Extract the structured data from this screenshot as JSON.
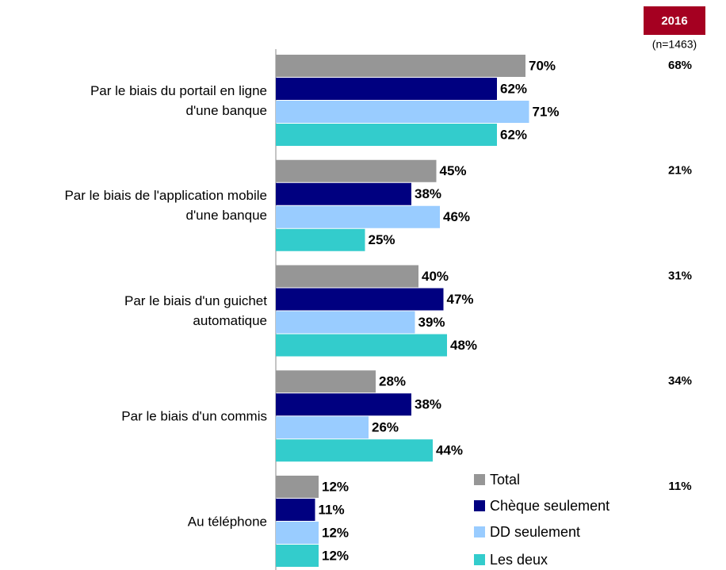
{
  "chart_data": {
    "type": "bar",
    "orientation": "horizontal",
    "categories": [
      "Par le biais du portail en ligne\nd'une banque",
      "Par le biais de l'application mobile\nd'une banque",
      "Par le biais d'un guichet\nautomatique",
      "Par le biais d'un commis",
      "Au téléphone"
    ],
    "series": [
      {
        "name": "Total",
        "color": "#969696",
        "values": [
          70,
          45,
          40,
          28,
          12
        ],
        "value_labels": [
          "70%",
          "45%",
          "40%",
          "28%",
          "12%"
        ]
      },
      {
        "name": "Chèque seulement",
        "color": "#000080",
        "values": [
          62,
          38,
          47,
          38,
          11
        ],
        "value_labels": [
          "62%",
          "38%",
          "47%",
          "38%",
          "11%"
        ]
      },
      {
        "name": "DD seulement",
        "color": "#99ccff",
        "values": [
          71,
          46,
          39,
          26,
          12
        ],
        "value_labels": [
          "71%",
          "46%",
          "39%",
          "26%",
          "12%"
        ]
      },
      {
        "name": "Les deux",
        "color": "#33cccc",
        "values": [
          62,
          25,
          48,
          44,
          12
        ],
        "value_labels": [
          "62%",
          "25%",
          "48%",
          "44%",
          "12%"
        ]
      }
    ],
    "side_column": {
      "title": "2016",
      "subtitle": "(n=1463)",
      "color": "#a50021",
      "values": [
        68,
        21,
        31,
        34,
        11
      ],
      "value_labels": [
        "68%",
        "21%",
        "31%",
        "34%",
        "11%"
      ]
    }
  }
}
